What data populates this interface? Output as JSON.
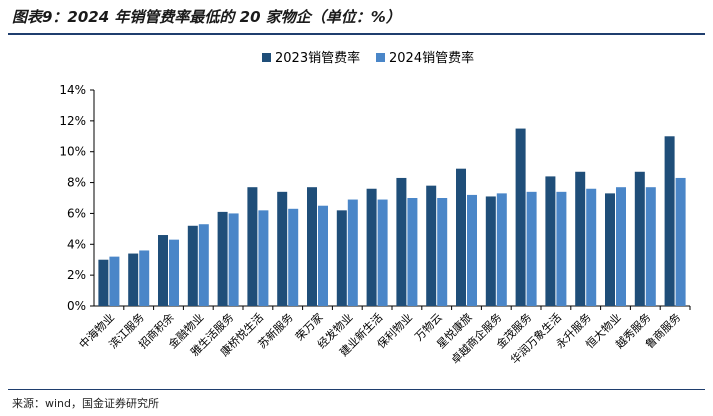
{
  "header": {
    "title": "图表9：2024 年销管费率最低的 20 家物企（单位：%）"
  },
  "footer": {
    "source": "来源：wind，国金证券研究所"
  },
  "colors": {
    "series_2023": "#1f4e79",
    "series_2024": "#4a86c8",
    "rule": "#1f3e6e"
  },
  "chart_data": {
    "type": "bar",
    "title": "",
    "xlabel": "",
    "ylabel": "",
    "ylim": [
      0,
      14
    ],
    "yticks": [
      "0%",
      "2%",
      "4%",
      "6%",
      "8%",
      "10%",
      "12%",
      "14%"
    ],
    "grid": false,
    "legend_position": "top-center",
    "categories": [
      "中海物业",
      "滨江服务",
      "招商积余",
      "金融物业",
      "雅生活服务",
      "康桥悦生活",
      "苏新服务",
      "荣万家",
      "经发物业",
      "建业新生活",
      "保利物业",
      "万物云",
      "星悦康旅",
      "卓越商企服务",
      "金茂服务",
      "华润万象生活",
      "永升服务",
      "恒大物业",
      "越秀服务",
      "鲁商服务"
    ],
    "series": [
      {
        "name": "2023销管费率",
        "values": [
          3.0,
          3.4,
          4.6,
          5.2,
          6.1,
          7.7,
          7.4,
          7.7,
          6.2,
          7.6,
          8.3,
          7.8,
          8.9,
          7.1,
          11.5,
          8.4,
          8.7,
          7.3,
          8.7,
          11.0
        ]
      },
      {
        "name": "2024销管费率",
        "values": [
          3.2,
          3.6,
          4.3,
          5.3,
          6.0,
          6.2,
          6.3,
          6.5,
          6.9,
          6.9,
          7.0,
          7.0,
          7.2,
          7.3,
          7.4,
          7.4,
          7.6,
          7.7,
          7.7,
          8.3
        ]
      }
    ]
  }
}
